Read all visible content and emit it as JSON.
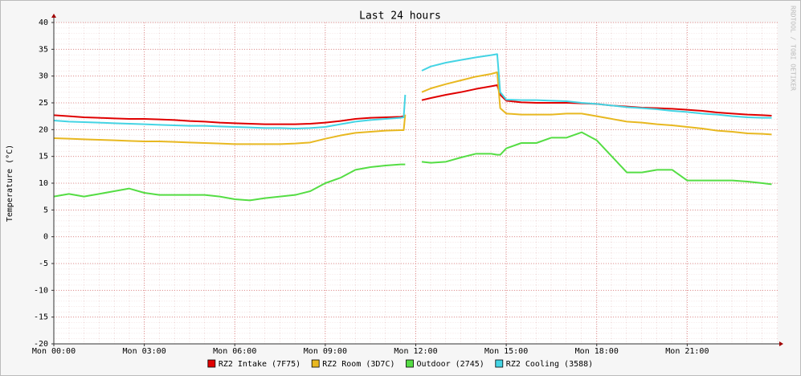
{
  "chart_data": {
    "type": "line",
    "title": "Last 24 hours",
    "y_label": "Temperature (°C)",
    "watermark": "RRDTOOL / TOBI OETIKER",
    "grid": true,
    "xlim": [
      0,
      24
    ],
    "xticks": [
      {
        "value": 0,
        "label": "Mon 00:00"
      },
      {
        "value": 3,
        "label": "Mon 03:00"
      },
      {
        "value": 6,
        "label": "Mon 06:00"
      },
      {
        "value": 9,
        "label": "Mon 09:00"
      },
      {
        "value": 12,
        "label": "Mon 12:00"
      },
      {
        "value": 15,
        "label": "Mon 15:00"
      },
      {
        "value": 18,
        "label": "Mon 18:00"
      },
      {
        "value": 21,
        "label": "Mon 21:00"
      }
    ],
    "ylim": [
      -20,
      40
    ],
    "yticks": [
      -20,
      -15,
      -10,
      -5,
      0,
      5,
      10,
      15,
      20,
      25,
      30,
      35,
      40
    ],
    "x": [
      0,
      0.5,
      1,
      1.5,
      2,
      2.5,
      3,
      3.5,
      4,
      4.5,
      5,
      5.5,
      6,
      6.5,
      7,
      7.5,
      8,
      8.5,
      9,
      9.5,
      10,
      10.5,
      11,
      11.5,
      11.6,
      11.65,
      11.9,
      12.2,
      12.5,
      13,
      13.5,
      14,
      14.5,
      14.7,
      14.8,
      15,
      15.5,
      16,
      16.5,
      17,
      17.5,
      18,
      18.5,
      19,
      19.5,
      20,
      20.5,
      21,
      21.5,
      22,
      22.5,
      23,
      23.5,
      23.8
    ],
    "series": [
      {
        "name": "RZ2 Intake (7F75)",
        "color": "#e00000",
        "values": [
          22.7,
          22.5,
          22.3,
          22.2,
          22.1,
          22.0,
          22.0,
          21.9,
          21.8,
          21.6,
          21.5,
          21.3,
          21.2,
          21.1,
          21.0,
          21.0,
          21.0,
          21.1,
          21.3,
          21.6,
          22.0,
          22.2,
          22.3,
          22.4,
          22.5,
          22.6,
          null,
          25.5,
          25.9,
          26.5,
          27,
          27.6,
          28.1,
          28.3,
          26.5,
          25.4,
          25.1,
          25.0,
          25.0,
          25.0,
          24.9,
          24.8,
          24.5,
          24.3,
          24.1,
          24.0,
          23.9,
          23.7,
          23.5,
          23.2,
          23.0,
          22.8,
          22.7,
          22.6
        ]
      },
      {
        "name": "RZ2 Room (3D7C)",
        "color": "#e8b820",
        "values": [
          18.4,
          18.3,
          18.2,
          18.1,
          18.0,
          17.9,
          17.8,
          17.8,
          17.7,
          17.6,
          17.5,
          17.4,
          17.3,
          17.3,
          17.3,
          17.3,
          17.4,
          17.6,
          18.3,
          18.9,
          19.4,
          19.6,
          19.8,
          19.9,
          19.9,
          22.8,
          null,
          27.0,
          27.7,
          28.5,
          29.2,
          29.9,
          30.4,
          30.7,
          24.0,
          23.0,
          22.8,
          22.8,
          22.8,
          23.0,
          23.0,
          22.5,
          22.0,
          21.5,
          21.3,
          21.0,
          20.8,
          20.5,
          20.2,
          19.8,
          19.6,
          19.3,
          19.2,
          19.1
        ]
      },
      {
        "name": "Outdoor (2745)",
        "color": "#55dd44",
        "values": [
          7.5,
          8.0,
          7.5,
          8.0,
          8.5,
          9.0,
          8.2,
          7.8,
          7.8,
          7.8,
          7.8,
          7.5,
          7.0,
          6.8,
          7.2,
          7.5,
          7.8,
          8.5,
          10.0,
          11.0,
          12.5,
          13.0,
          13.3,
          13.5,
          13.5,
          13.5,
          null,
          14.0,
          13.8,
          14.0,
          14.8,
          15.5,
          15.5,
          15.3,
          15.3,
          16.5,
          17.5,
          17.5,
          18.5,
          18.5,
          19.5,
          18.0,
          15.0,
          12.0,
          12.0,
          12.5,
          12.5,
          10.5,
          10.5,
          10.5,
          10.5,
          10.3,
          10.0,
          9.8
        ]
      },
      {
        "name": "RZ2 Cooling (3588)",
        "color": "#44d4e4",
        "values": [
          21.7,
          21.5,
          21.4,
          21.3,
          21.2,
          21.1,
          21.0,
          20.9,
          20.8,
          20.7,
          20.7,
          20.6,
          20.5,
          20.4,
          20.3,
          20.3,
          20.2,
          20.3,
          20.5,
          21.0,
          21.5,
          21.8,
          22.0,
          22.2,
          22.3,
          26.5,
          null,
          31.0,
          31.8,
          32.5,
          33.0,
          33.5,
          33.9,
          34.1,
          27.0,
          25.6,
          25.5,
          25.5,
          25.4,
          25.3,
          25.0,
          24.8,
          24.5,
          24.2,
          24.0,
          23.8,
          23.5,
          23.3,
          23.0,
          22.8,
          22.5,
          22.3,
          22.2,
          22.2
        ]
      }
    ]
  }
}
